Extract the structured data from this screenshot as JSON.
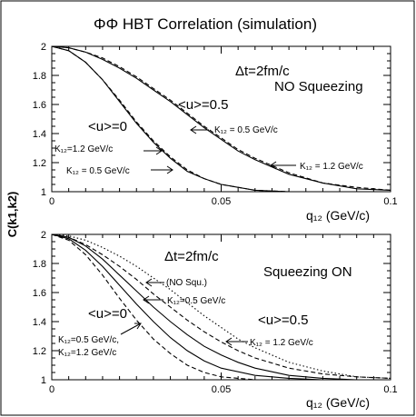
{
  "figure": {
    "title": "ΦΦ HBT Correlation (simulation)",
    "ylabel": "C(k1,k2)",
    "xlabel": "q₁₂ (GeV/c)"
  },
  "chart_data": [
    {
      "type": "line",
      "panel": "top",
      "xlim": [
        0,
        0.1
      ],
      "ylim": [
        1,
        2
      ],
      "x_ticks": [
        0,
        0.05,
        0.1
      ],
      "x_tick_labels": [
        "0",
        "0.05",
        "0.1"
      ],
      "y_ticks": [
        1,
        1.2,
        1.4,
        1.6,
        1.8,
        2
      ],
      "y_tick_labels": [
        "1",
        "1.2",
        "1.4",
        "1.6",
        "1.8",
        "2"
      ],
      "xlabel": "q₁₂ (GeV/c)",
      "ylabel": "C(k1,k2)",
      "grid": false,
      "annotations": [
        "Δt=2fm/c",
        "NO Squeezing",
        "<u>=0.5",
        "<u>=0",
        "K₁₂=1.2 GeV/c",
        "K₁₂ = 0.5 GeV/c",
        "K₁₂ = 0.5 GeV/c",
        "K₁₂ = 1.2 GeV/c"
      ],
      "series": [
        {
          "style": "solid",
          "x": [
            0,
            0.005,
            0.01,
            0.015,
            0.02,
            0.025,
            0.03,
            0.035,
            0.04,
            0.045,
            0.05,
            0.06,
            0.07,
            0.08,
            0.1
          ],
          "y": [
            2,
            1.97,
            1.89,
            1.77,
            1.62,
            1.47,
            1.34,
            1.23,
            1.14,
            1.09,
            1.05,
            1.01,
            1.0,
            1.0,
            1.0
          ]
        },
        {
          "style": "dashed",
          "x": [
            0,
            0.005,
            0.01,
            0.015,
            0.02,
            0.025,
            0.03,
            0.035,
            0.04,
            0.045,
            0.05,
            0.06,
            0.07,
            0.08,
            0.1
          ],
          "y": [
            2,
            1.97,
            1.89,
            1.77,
            1.63,
            1.48,
            1.35,
            1.24,
            1.15,
            1.09,
            1.05,
            1.01,
            1.0,
            1.0,
            1.0
          ]
        },
        {
          "style": "solid",
          "x": [
            0,
            0.005,
            0.01,
            0.015,
            0.02,
            0.025,
            0.03,
            0.035,
            0.04,
            0.045,
            0.05,
            0.055,
            0.06,
            0.07,
            0.08,
            0.09,
            0.1
          ],
          "y": [
            2,
            1.99,
            1.96,
            1.91,
            1.85,
            1.78,
            1.7,
            1.62,
            1.53,
            1.44,
            1.36,
            1.28,
            1.22,
            1.12,
            1.06,
            1.02,
            1.01
          ]
        },
        {
          "style": "dashed",
          "x": [
            0,
            0.005,
            0.01,
            0.015,
            0.02,
            0.025,
            0.03,
            0.035,
            0.04,
            0.045,
            0.05,
            0.055,
            0.06,
            0.07,
            0.08,
            0.09,
            0.1
          ],
          "y": [
            2,
            1.99,
            1.96,
            1.92,
            1.86,
            1.79,
            1.71,
            1.63,
            1.54,
            1.45,
            1.37,
            1.29,
            1.23,
            1.13,
            1.06,
            1.03,
            1.01
          ]
        }
      ]
    },
    {
      "type": "line",
      "panel": "bottom",
      "xlim": [
        0,
        0.1
      ],
      "ylim": [
        1,
        2
      ],
      "x_ticks": [
        0,
        0.05,
        0.1
      ],
      "x_tick_labels": [
        "0",
        "0.05",
        "0.1"
      ],
      "y_ticks": [
        1,
        1.2,
        1.4,
        1.6,
        1.8,
        2
      ],
      "y_tick_labels": [
        "1",
        "1.2",
        "1.4",
        "1.6",
        "1.8",
        "2"
      ],
      "xlabel": "q₁₂ (GeV/c)",
      "grid": false,
      "annotations": [
        "Δt=2fm/c",
        "Squeezing ON",
        "(NO Squ.)",
        "K₁₂=0.5 GeV/c",
        "<u>=0",
        "<u>=0.5",
        "K₁₂=0.5 GeV/c,",
        "K₁₂=1.2 GeV/c",
        "K₁₂ = 1.2 GeV/c"
      ],
      "series": [
        {
          "style": "dotted",
          "x": [
            0,
            0.005,
            0.01,
            0.015,
            0.02,
            0.025,
            0.03,
            0.035,
            0.04,
            0.045,
            0.05,
            0.055,
            0.06,
            0.07,
            0.08,
            0.09,
            0.1
          ],
          "y": [
            2,
            1.99,
            1.96,
            1.91,
            1.85,
            1.78,
            1.7,
            1.62,
            1.53,
            1.44,
            1.36,
            1.28,
            1.22,
            1.12,
            1.06,
            1.02,
            1.01
          ]
        },
        {
          "style": "dashed",
          "x": [
            0,
            0.005,
            0.01,
            0.015,
            0.02,
            0.025,
            0.03,
            0.035,
            0.04,
            0.045,
            0.05,
            0.055,
            0.06,
            0.07,
            0.08,
            0.09,
            0.1
          ],
          "y": [
            2,
            1.98,
            1.93,
            1.86,
            1.78,
            1.69,
            1.59,
            1.5,
            1.41,
            1.33,
            1.26,
            1.2,
            1.15,
            1.08,
            1.04,
            1.02,
            1.01
          ]
        },
        {
          "style": "solid",
          "x": [
            0,
            0.005,
            0.01,
            0.015,
            0.02,
            0.025,
            0.03,
            0.035,
            0.04,
            0.045,
            0.05,
            0.055,
            0.06,
            0.07,
            0.08,
            0.09,
            0.1
          ],
          "y": [
            2,
            1.98,
            1.92,
            1.83,
            1.72,
            1.61,
            1.5,
            1.4,
            1.31,
            1.23,
            1.17,
            1.12,
            1.08,
            1.03,
            1.01,
            1.0,
            1.0
          ]
        },
        {
          "style": "solid",
          "x": [
            0,
            0.005,
            0.01,
            0.015,
            0.02,
            0.025,
            0.03,
            0.035,
            0.04,
            0.045,
            0.05,
            0.06,
            0.07,
            0.08,
            0.1
          ],
          "y": [
            2,
            1.97,
            1.89,
            1.78,
            1.65,
            1.52,
            1.4,
            1.29,
            1.2,
            1.13,
            1.08,
            1.03,
            1.01,
            1.0,
            1.0
          ]
        },
        {
          "style": "dashed",
          "x": [
            0,
            0.005,
            0.01,
            0.015,
            0.02,
            0.025,
            0.03,
            0.035,
            0.04,
            0.045,
            0.05,
            0.06,
            0.07,
            0.08,
            0.1
          ],
          "y": [
            2,
            1.96,
            1.86,
            1.72,
            1.56,
            1.41,
            1.28,
            1.18,
            1.1,
            1.05,
            1.02,
            1.0,
            1.0,
            1.0,
            1.0
          ]
        }
      ]
    }
  ]
}
